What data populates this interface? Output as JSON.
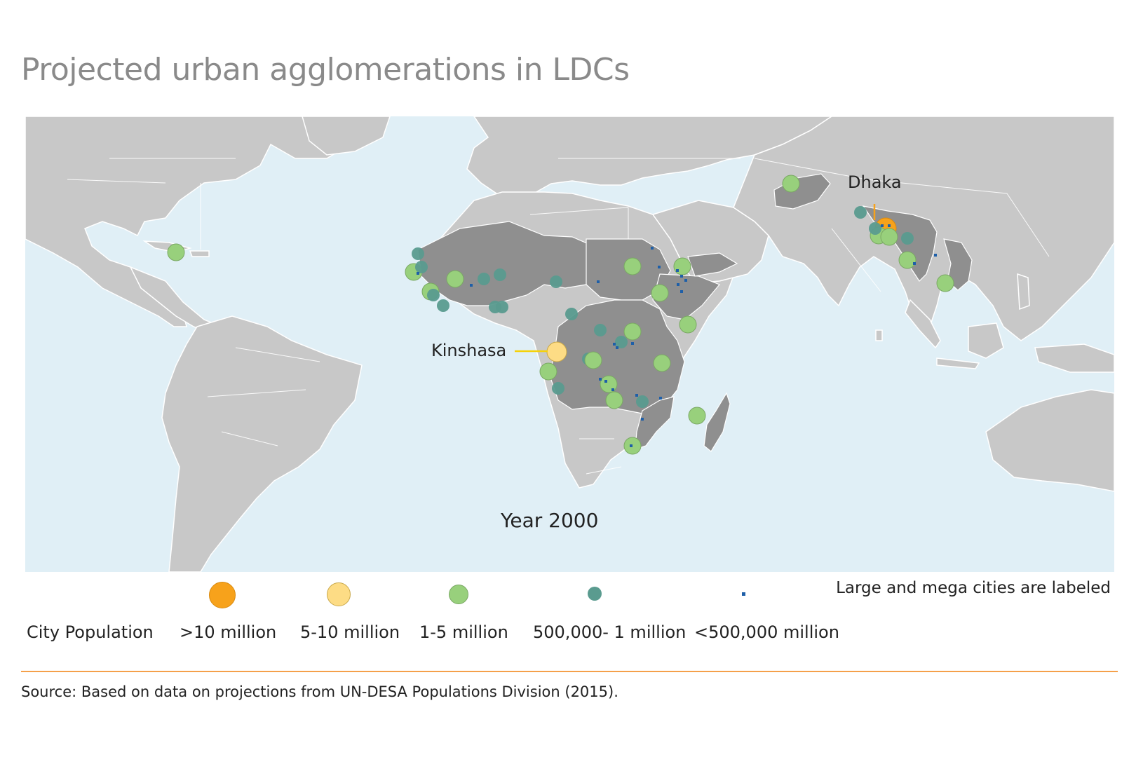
{
  "title": "Projected urban agglomerations in LDCs",
  "map": {
    "year_label": "Year 2000",
    "labels": {
      "dhaka": "Dhaka",
      "kinshasa": "Kinshasa"
    },
    "colors": {
      "ocean": "#e0eff6",
      "land": "#c8c8c8",
      "ldc_land": "#8f8f8f",
      "border": "#ffffff"
    }
  },
  "legend": {
    "heading": "City Population",
    "items": [
      {
        "label": ">10 million",
        "color": "#f7a21b"
      },
      {
        "label": "5-10 million",
        "color": "#fddc85"
      },
      {
        "label": "1-5 million",
        "color": "#98d07c"
      },
      {
        "label": "500,000- 1 million",
        "color": "#5a9b8f"
      },
      {
        "label": "<500,000 million",
        "color": "#1e5fa8"
      }
    ],
    "note": "Large and mega cities are labeled"
  },
  "source": "Source: Based on data on projections from UN-DESA Populations Division (2015)."
}
